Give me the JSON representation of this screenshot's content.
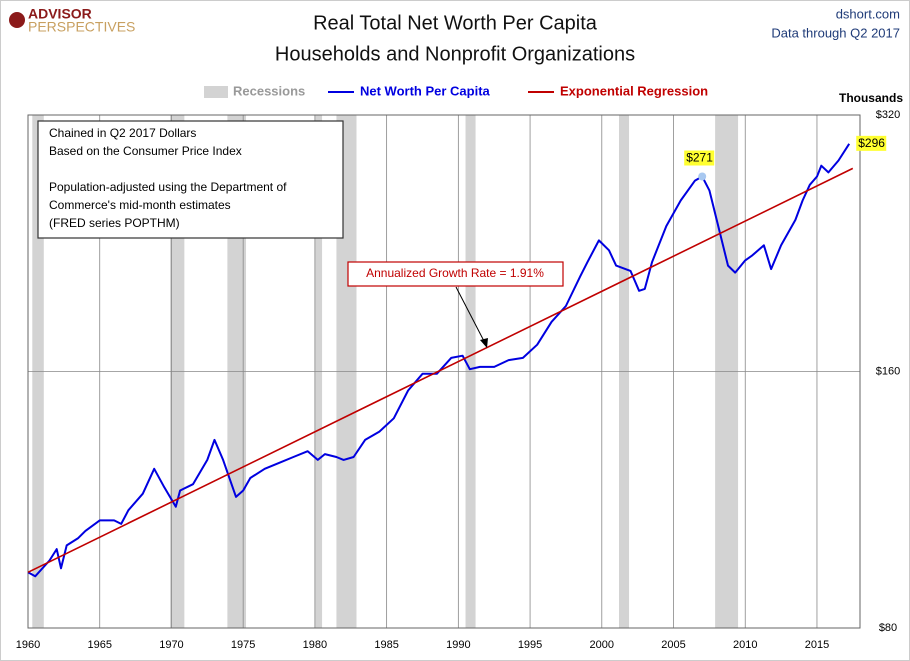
{
  "chart_data": {
    "type": "line",
    "logo": [
      "ADVISOR",
      "PERSPECTIVES"
    ],
    "title": "Real Total Net Worth Per Capita",
    "subtitle": "Households and Nonprofit Organizations",
    "source": "dshort.com",
    "data_note": "Data through Q2 2017",
    "y_unit_label": "Thousands",
    "log_scale": true,
    "grid": true,
    "xlim": [
      1960,
      2018
    ],
    "ylim": [
      80,
      320
    ],
    "xticks": [
      1960,
      1965,
      1970,
      1975,
      1980,
      1985,
      1990,
      1995,
      2000,
      2005,
      2010,
      2015
    ],
    "yticks": [
      {
        "value": 80,
        "label": "$80"
      },
      {
        "value": 160,
        "label": "$160"
      },
      {
        "value": 320,
        "label": "$320"
      }
    ],
    "recessions": {
      "name": "Recessions",
      "color": "#d3d3d3",
      "periods": [
        [
          1960.3,
          1961.1
        ],
        [
          1969.9,
          1970.9
        ],
        [
          1973.9,
          1975.2
        ],
        [
          1980.0,
          1980.5
        ],
        [
          1981.5,
          1982.9
        ],
        [
          1990.5,
          1991.2
        ],
        [
          2001.2,
          2001.9
        ],
        [
          2007.9,
          2009.5
        ]
      ]
    },
    "series": [
      {
        "name": "Net Worth Per Capita",
        "color": "#0000e0",
        "x": [
          1960,
          1960.5,
          1961.5,
          1962,
          1962.3,
          1962.7,
          1963.5,
          1964,
          1965,
          1966,
          1966.5,
          1967,
          1968,
          1968.8,
          1969.5,
          1970.3,
          1970.6,
          1971.5,
          1972.5,
          1973,
          1973.6,
          1974.5,
          1975,
          1975.5,
          1976.5,
          1977.5,
          1978.5,
          1979.5,
          1980.2,
          1980.7,
          1981.5,
          1982,
          1982.7,
          1983.5,
          1984.5,
          1985.5,
          1986.5,
          1987.5,
          1988.5,
          1989.5,
          1990.3,
          1990.8,
          1991.5,
          1992.5,
          1993.5,
          1994.5,
          1995.5,
          1996.5,
          1997.5,
          1998.5,
          1999,
          1999.8,
          2000.5,
          2001,
          2002,
          2002.6,
          2003,
          2003.5,
          2004.5,
          2005.5,
          2006.5,
          2007,
          2007.5,
          2008.2,
          2008.8,
          2009.3,
          2010,
          2010.5,
          2011.3,
          2011.8,
          2012.5,
          2013.5,
          2014,
          2014.5,
          2015,
          2015.3,
          2015.8,
          2016.5,
          2017.25
        ],
        "values": [
          93,
          92,
          96,
          99,
          94,
          100,
          102,
          104,
          107,
          107,
          106,
          110,
          115,
          123,
          117,
          111,
          116,
          118,
          126,
          133,
          126,
          114,
          116,
          120,
          123,
          125,
          127,
          129,
          126,
          128,
          127,
          126,
          127,
          133,
          136,
          141,
          152,
          159,
          159,
          166,
          167,
          161,
          162,
          162,
          165,
          166,
          172,
          183,
          191,
          207,
          215,
          228,
          222,
          213,
          210,
          199,
          200,
          215,
          237,
          254,
          268,
          271,
          261,
          234,
          213,
          209,
          216,
          219,
          225,
          211,
          225,
          241,
          254,
          265,
          271,
          279,
          274,
          283,
          296
        ],
        "value_labels": [
          null,
          null,
          null,
          null,
          null,
          null,
          null,
          null,
          null,
          null,
          null,
          null,
          null,
          null,
          null,
          null,
          null,
          null,
          null,
          null,
          null,
          null,
          null,
          null,
          null,
          null,
          null,
          null,
          null,
          null,
          null,
          null,
          null,
          null,
          null,
          null,
          null,
          null,
          null,
          null,
          null,
          null,
          null,
          null,
          null,
          null,
          null,
          null,
          null,
          null,
          null,
          null,
          null,
          null,
          null,
          null,
          null,
          null,
          null,
          null,
          null,
          "$271",
          null,
          null,
          null,
          null,
          null,
          null,
          null,
          null,
          null,
          null,
          null,
          null,
          null,
          null,
          null,
          null,
          "$296"
        ]
      },
      {
        "name": "Exponential Regression",
        "color": "#c00000",
        "x": [
          1960,
          2017.5
        ],
        "values": [
          93,
          277
        ]
      }
    ],
    "notes": [
      "Chained in Q2 2017 Dollars",
      "Based on the Consumer Price Index",
      "Population-adjusted using the Department of",
      "Commerce's mid-month estimates",
      "(FRED series POPTHM)"
    ],
    "growth_annotation": "Annualized Growth Rate = 1.91%"
  }
}
